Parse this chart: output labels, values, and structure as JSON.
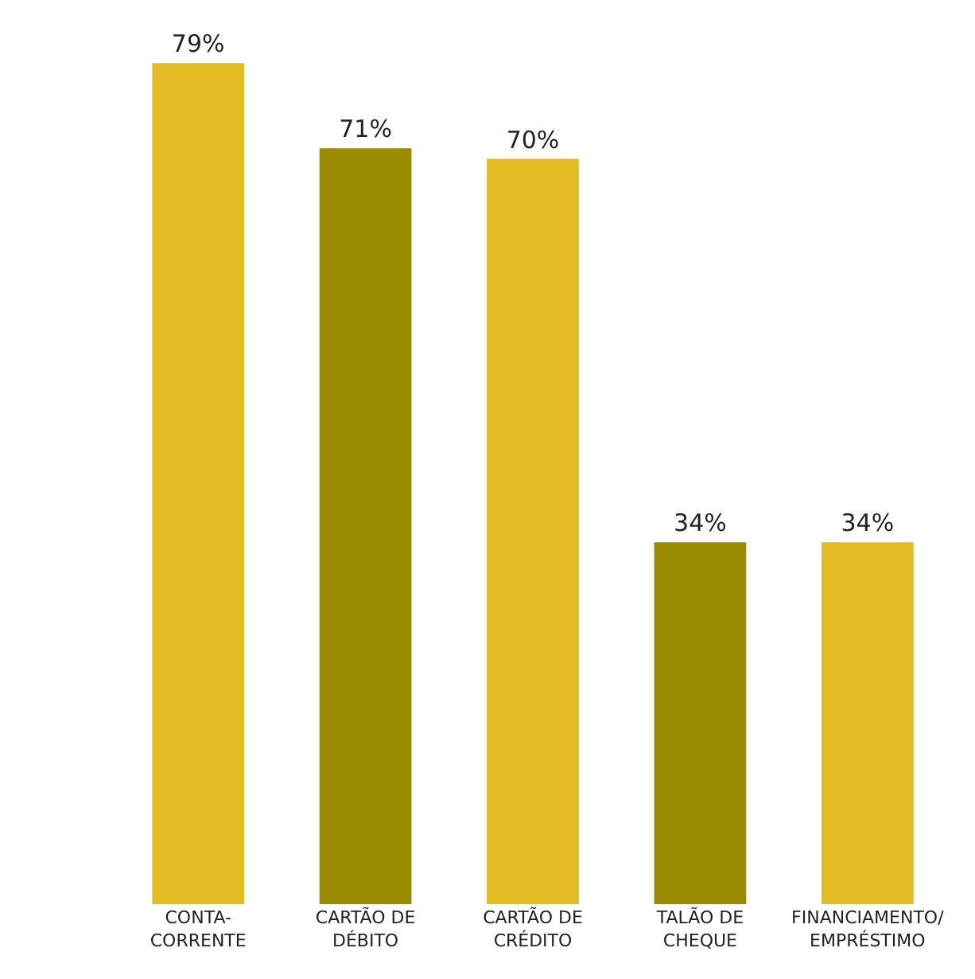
{
  "chart_data": {
    "type": "bar",
    "categories": [
      "CONTA-\nCORRENTE",
      "CARTÃO DE\nDÉBITO",
      "CARTÃO DE\nCRÉDITO",
      "TALÃO DE\nCHEQUE",
      "FINANCIAMENTO/\nEMPRÉSTIMO"
    ],
    "values": [
      79,
      71,
      70,
      34,
      34
    ],
    "colors": [
      "#e3bb22",
      "#9a8c00",
      "#e3bb22",
      "#9a8c00",
      "#e3bb22"
    ],
    "value_labels": [
      "79%",
      "71%",
      "70%",
      "34%",
      "34%"
    ]
  }
}
